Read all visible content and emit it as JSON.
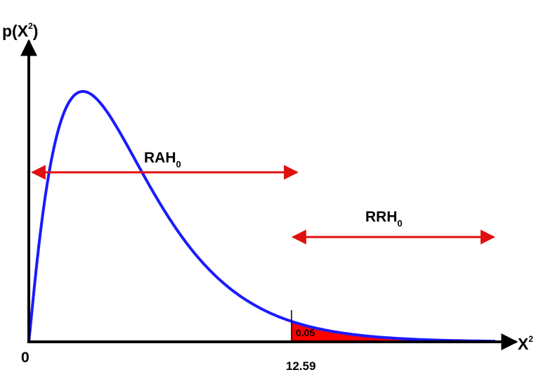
{
  "diagram": {
    "y_axis_label": {
      "base": "p(X",
      "sup": "2",
      "tail": ")"
    },
    "x_axis_label": {
      "base": "X",
      "sup": "2"
    },
    "origin_label": "0",
    "critical_value_label": "12.59",
    "tail_area_label": "0.05",
    "acceptance_region": {
      "base": "RAH",
      "sub": "0"
    },
    "rejection_region": {
      "base": "RRH",
      "sub": "0"
    },
    "colors": {
      "curve": "#1a1aff",
      "arrows": "#e01010",
      "tail_fill": "#ff0000",
      "axes": "#000000"
    }
  }
}
